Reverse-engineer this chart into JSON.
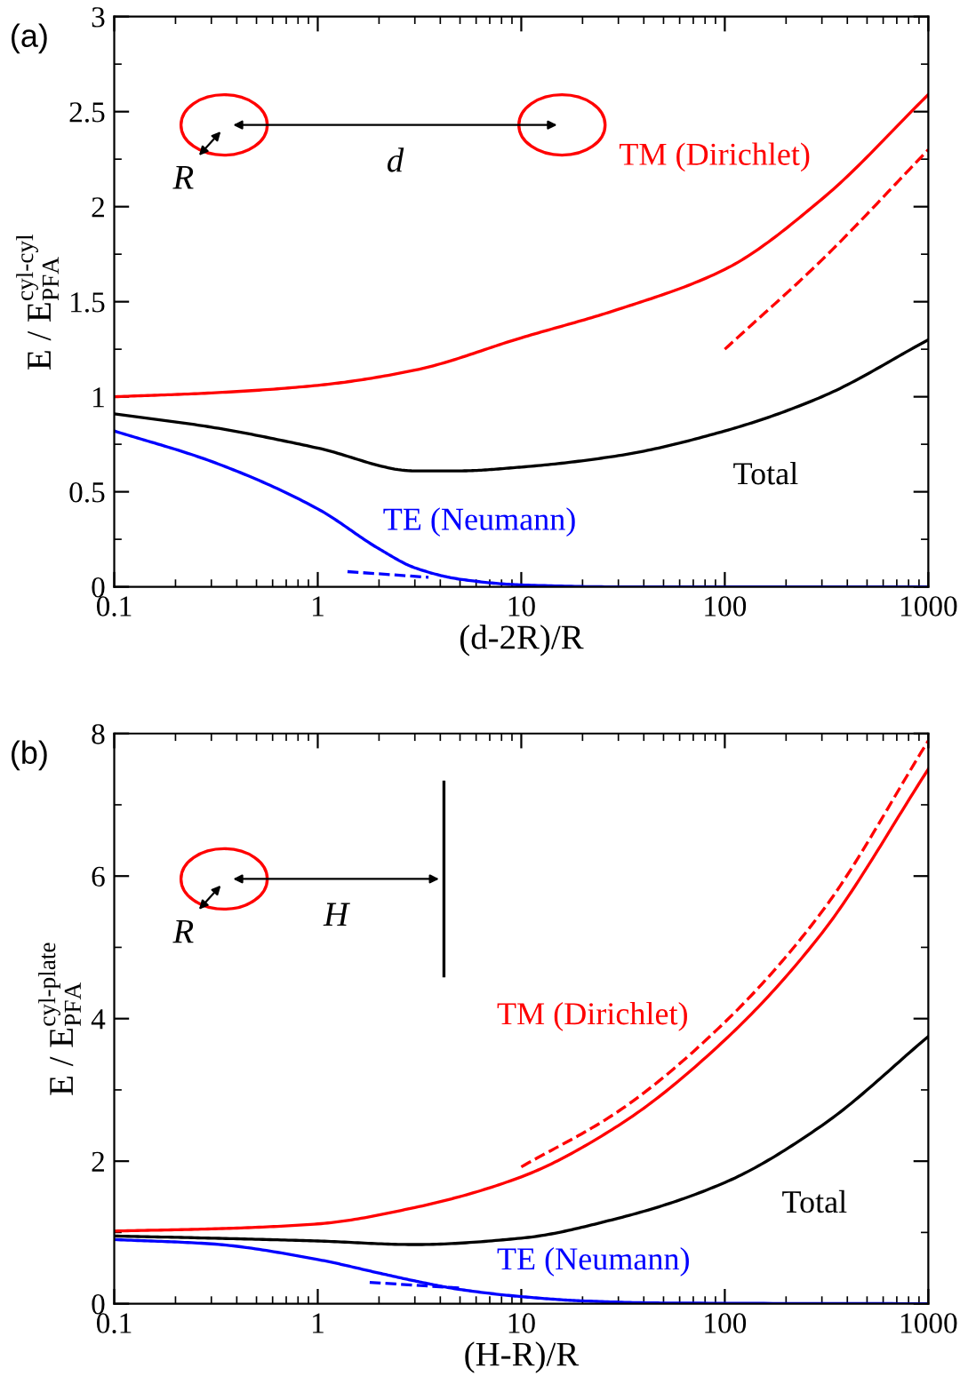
{
  "chart_data": [
    {
      "type": "line",
      "title": "(a)",
      "xlabel": "(d-2R)/R",
      "ylabel": "E / E$^{cyl-cyl}$$_{PFA}$",
      "log": "x",
      "xlim": [
        0.1,
        1000
      ],
      "xticks": [
        {
          "value": 0.1,
          "label": "0.1"
        },
        {
          "value": 1,
          "label": "1"
        },
        {
          "value": 10,
          "label": "10"
        },
        {
          "value": 100,
          "label": "100"
        },
        {
          "value": 1000,
          "label": "1000"
        }
      ],
      "ylim": [
        0,
        3
      ],
      "yticks": [
        0,
        0.5,
        1,
        1.5,
        2,
        2.5,
        3
      ],
      "grid": false,
      "legend": false,
      "annotations": [
        "d",
        "R"
      ],
      "series": [
        {
          "name": "TM (Dirichlet)",
          "color": "#ff0000",
          "line_style": "solid",
          "x": [
            0.1,
            0.3,
            1,
            3,
            10,
            30,
            100,
            300,
            1000
          ],
          "values": [
            1.0,
            1.02,
            1.06,
            1.14,
            1.31,
            1.46,
            1.67,
            2.04,
            2.59
          ]
        },
        {
          "name": "Total",
          "color": "#000000",
          "line_style": "solid",
          "x": [
            0.1,
            0.3,
            1,
            3,
            5,
            10,
            30,
            100,
            300,
            1000
          ],
          "values": [
            0.91,
            0.84,
            0.73,
            0.61,
            0.61,
            0.63,
            0.69,
            0.82,
            1.0,
            1.3
          ]
        },
        {
          "name": "TE (Neumann)",
          "color": "#0000ff",
          "line_style": "solid",
          "x": [
            0.1,
            0.3,
            1,
            2,
            3,
            5,
            10,
            30,
            1000
          ],
          "values": [
            0.82,
            0.66,
            0.41,
            0.2,
            0.1,
            0.04,
            0.01,
            0.0,
            0.0
          ]
        },
        {
          "color": "#ff0000",
          "line_style": "dashed",
          "x": [
            100,
            300,
            1000
          ],
          "values": [
            1.25,
            1.72,
            2.3
          ]
        },
        {
          "color": "#0000ff",
          "line_style": "dashed",
          "x": [
            1.4,
            3.5
          ],
          "values": [
            0.08,
            0.05
          ]
        }
      ]
    },
    {
      "type": "line",
      "title": "(b)",
      "xlabel": "(H-R)/R",
      "ylabel": "E / E$^{cyl-plate}$$_{PFA}$",
      "log": "x",
      "xlim": [
        0.1,
        1000
      ],
      "xticks": [
        {
          "value": 0.1,
          "label": "0.1"
        },
        {
          "value": 1,
          "label": "1"
        },
        {
          "value": 10,
          "label": "10"
        },
        {
          "value": 100,
          "label": "100"
        },
        {
          "value": 1000,
          "label": "1000"
        }
      ],
      "ylim": [
        0,
        8
      ],
      "yticks": [
        0,
        2,
        4,
        6,
        8
      ],
      "grid": false,
      "legend": false,
      "annotations": [
        "H",
        "R"
      ],
      "series": [
        {
          "name": "TM (Dirichlet)",
          "color": "#ff0000",
          "line_style": "solid",
          "x": [
            0.1,
            0.3,
            1,
            3,
            10,
            30,
            100,
            300,
            1000
          ],
          "values": [
            1.02,
            1.05,
            1.12,
            1.35,
            1.78,
            2.5,
            3.7,
            5.2,
            7.5
          ]
        },
        {
          "name": "Total",
          "color": "#000000",
          "line_style": "solid",
          "x": [
            0.1,
            0.3,
            1,
            3,
            10,
            30,
            100,
            300,
            1000
          ],
          "values": [
            0.95,
            0.92,
            0.88,
            0.83,
            0.92,
            1.2,
            1.7,
            2.5,
            3.75
          ]
        },
        {
          "name": "TE (Neumann)",
          "color": "#0000ff",
          "line_style": "solid",
          "x": [
            0.1,
            0.3,
            1,
            2,
            3,
            5,
            10,
            20,
            50,
            1000
          ],
          "values": [
            0.9,
            0.84,
            0.62,
            0.43,
            0.32,
            0.2,
            0.1,
            0.04,
            0.01,
            0.0
          ]
        },
        {
          "color": "#ff0000",
          "line_style": "dashed",
          "x": [
            10,
            30,
            100,
            300,
            1000
          ],
          "values": [
            1.92,
            2.7,
            3.95,
            5.5,
            7.9
          ]
        },
        {
          "color": "#0000ff",
          "line_style": "dashed",
          "x": [
            1.8,
            5
          ],
          "values": [
            0.3,
            0.22
          ]
        }
      ]
    }
  ]
}
